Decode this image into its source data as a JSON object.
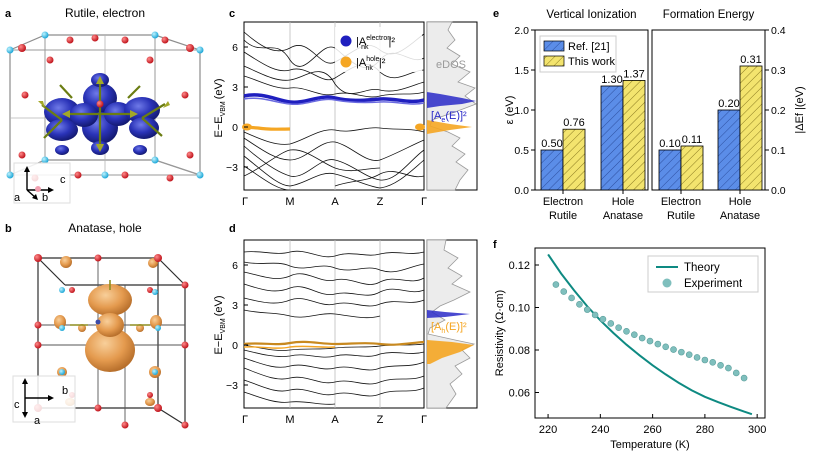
{
  "figure": {
    "panel_a": {
      "letter": "a",
      "title": "Rutile, electron",
      "axes": [
        "c",
        "a",
        "b"
      ]
    },
    "panel_b": {
      "letter": "b",
      "title": "Anatase, hole",
      "axes": [
        "c",
        "a",
        "b"
      ]
    },
    "panel_c": {
      "letter": "c",
      "ylabel": "E−E",
      "ylabel_sub": "VBM",
      "ylabel_unit": "(eV)",
      "yticks": [
        "6",
        "3",
        "0",
        "−3"
      ],
      "kpoints": [
        "Γ",
        "M",
        "A",
        "Z",
        "Γ"
      ],
      "legend": [
        {
          "label": "|A",
          "sup": "electron",
          "sub": "nk",
          "tail": "|²",
          "color": "#1f1fbf"
        },
        {
          "label": "|A",
          "sup": "hole",
          "sub": "nk",
          "tail": "|²",
          "color": "#f5a623"
        }
      ],
      "dos_label": "eDOS",
      "weight_label": "[A",
      "weight_sub": "e",
      "weight_tail": "(E)]²",
      "weight_color": "#2a2ac8"
    },
    "panel_d": {
      "letter": "d",
      "ylabel": "E−E",
      "ylabel_sub": "VBM",
      "ylabel_unit": "(eV)",
      "yticks": [
        "6",
        "3",
        "0",
        "−3"
      ],
      "kpoints": [
        "Γ",
        "M",
        "A",
        "Z",
        "Γ"
      ],
      "weight_label": "[A",
      "weight_sub": "h",
      "weight_tail": "(E)]²",
      "weight_color": "#f5a623"
    },
    "panel_f": {
      "letter": "f"
    }
  },
  "chart_data": [
    {
      "id": "e",
      "type": "bar",
      "groups": [
        "Vertical Ionization",
        "Formation Energy"
      ],
      "categories": [
        [
          "Electron",
          "Rutile"
        ],
        [
          "Hole",
          "Anatase"
        ],
        [
          "Electron",
          "Rutile"
        ],
        [
          "Hole",
          "Anatase"
        ]
      ],
      "series": [
        {
          "name": "Ref. [21]",
          "values": [
            0.5,
            1.3,
            0.1,
            0.2
          ],
          "labels": [
            "0.50",
            "1.30",
            "0.10",
            "0.20"
          ],
          "color": "#5b8de8"
        },
        {
          "name": "This work",
          "values": [
            0.76,
            1.37,
            0.11,
            0.31
          ],
          "labels": [
            "0.76",
            "1.37",
            "0.11",
            "0.31"
          ],
          "color": "#f3e46e"
        }
      ],
      "ylabel_left": "ε (eV)",
      "ylim_left": [
        0,
        2.0
      ],
      "yticks_left": [
        "0.0",
        "0.5",
        "1.0",
        "1.5",
        "2.0"
      ],
      "ylabel_right": "|ΔEf |(eV)",
      "ylim_right": [
        0,
        0.4
      ],
      "yticks_right": [
        "0.0",
        "0.1",
        "0.2",
        "0.3",
        "0.4"
      ]
    },
    {
      "id": "f",
      "type": "line+scatter",
      "xlabel": "Temperature (K)",
      "ylabel": "Resistivity (Ω·cm)",
      "xlim": [
        215,
        303
      ],
      "ylim": [
        0.048,
        0.128
      ],
      "xticks": [
        "220",
        "240",
        "260",
        "280",
        "300"
      ],
      "yticks": [
        "0.06",
        "0.08",
        "0.10",
        "0.12"
      ],
      "series": [
        {
          "name": "Theory",
          "kind": "line",
          "color": "#0e8a82",
          "x": [
            220,
            225,
            230,
            235,
            240,
            245,
            250,
            255,
            260,
            265,
            270,
            275,
            280,
            285,
            290,
            295,
            298
          ],
          "y": [
            0.125,
            0.116,
            0.108,
            0.1005,
            0.094,
            0.088,
            0.0825,
            0.0775,
            0.0728,
            0.0685,
            0.0645,
            0.061,
            0.058,
            0.0555,
            0.0532,
            0.051,
            0.0498
          ]
        },
        {
          "name": "Experiment",
          "kind": "scatter",
          "color": "#7fbfbd",
          "x": [
            223,
            226,
            229,
            232,
            235,
            238,
            241,
            244,
            247,
            250,
            253,
            256,
            259,
            262,
            265,
            268,
            271,
            274,
            277,
            280,
            283,
            286,
            289,
            292,
            295
          ],
          "y": [
            0.1108,
            0.1075,
            0.1045,
            0.1015,
            0.099,
            0.0965,
            0.0945,
            0.0925,
            0.0905,
            0.0888,
            0.0872,
            0.0856,
            0.0842,
            0.0828,
            0.0815,
            0.0802,
            0.079,
            0.0778,
            0.0765,
            0.0753,
            0.0742,
            0.0728,
            0.0715,
            0.0692,
            0.0668
          ]
        }
      ]
    }
  ]
}
